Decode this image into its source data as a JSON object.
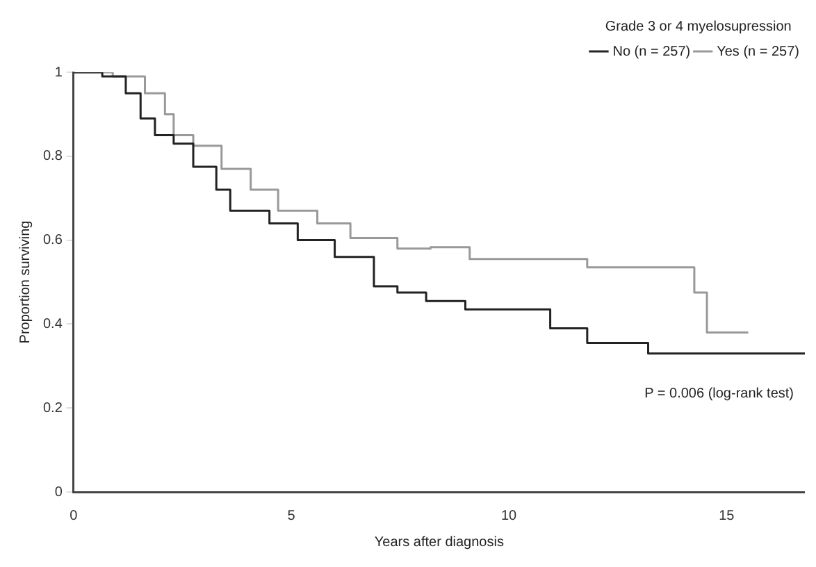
{
  "chart_data": {
    "type": "step",
    "xlabel": "Years after diagnosis",
    "ylabel": "Proportion surviving",
    "legend_title": "Grade 3 or 4 myelosupression",
    "series": [
      {
        "name": "No (n = 257)",
        "color": "#222222",
        "x": [
          0,
          0.66,
          1.2,
          1.54,
          1.87,
          2.3,
          2.75,
          3.28,
          3.6,
          4.5,
          5.15,
          6.0,
          6.9,
          7.44,
          8.1,
          9.0,
          10.07,
          10.95,
          11.8,
          12.7,
          13.2,
          16.8
        ],
        "values": [
          1,
          0.99,
          0.95,
          0.89,
          0.85,
          0.83,
          0.775,
          0.72,
          0.67,
          0.64,
          0.6,
          0.56,
          0.49,
          0.475,
          0.455,
          0.435,
          0.435,
          0.39,
          0.355,
          0.355,
          0.33,
          0.33
        ]
      },
      {
        "name": "Yes (n = 257)",
        "color": "#999999",
        "x": [
          0,
          0.9,
          1.64,
          2.1,
          2.3,
          2.75,
          3.4,
          4.07,
          4.7,
          5.6,
          6.36,
          7.44,
          8.2,
          9.1,
          11.8,
          14.26,
          14.55,
          15.5
        ],
        "values": [
          1,
          0.99,
          0.95,
          0.9,
          0.85,
          0.825,
          0.77,
          0.72,
          0.67,
          0.64,
          0.605,
          0.58,
          0.583,
          0.555,
          0.535,
          0.475,
          0.38,
          0.38
        ]
      }
    ],
    "xlim": [
      0,
      16.8
    ],
    "xticks": [
      0,
      5,
      10,
      15
    ],
    "ylim": [
      0,
      1
    ],
    "yticks": [
      0,
      0.2,
      0.4,
      0.6,
      0.8,
      1
    ],
    "grid": false,
    "legend": "top right",
    "marker": "none",
    "line_style": "solid",
    "annotations": [
      "P = 0.006 (log-rank test)"
    ]
  }
}
